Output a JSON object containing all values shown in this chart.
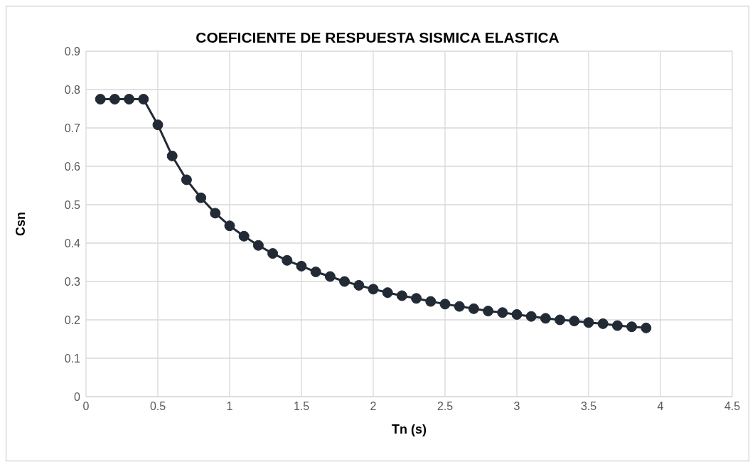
{
  "chart_data": {
    "type": "line",
    "title": "COEFICIENTE DE RESPUESTA SISMICA ELASTICA",
    "xlabel": "Tn (s)",
    "ylabel": "Csn",
    "x": [
      0.1,
      0.2,
      0.3,
      0.4,
      0.5,
      0.6,
      0.7,
      0.8,
      0.9,
      1.0,
      1.1,
      1.2,
      1.3,
      1.4,
      1.5,
      1.6,
      1.7,
      1.8,
      1.9,
      2.0,
      2.1,
      2.2,
      2.3,
      2.4,
      2.5,
      2.6,
      2.7,
      2.8,
      2.9,
      3.0,
      3.1,
      3.2,
      3.3,
      3.4,
      3.5,
      3.6,
      3.7,
      3.8,
      3.9
    ],
    "series": [
      {
        "color": "#222a35",
        "values": [
          0.775,
          0.775,
          0.775,
          0.775,
          0.708,
          0.627,
          0.565,
          0.518,
          0.478,
          0.445,
          0.418,
          0.394,
          0.373,
          0.355,
          0.34,
          0.325,
          0.313,
          0.3,
          0.29,
          0.28,
          0.271,
          0.263,
          0.256,
          0.248,
          0.241,
          0.235,
          0.229,
          0.223,
          0.219,
          0.214,
          0.209,
          0.204,
          0.2,
          0.197,
          0.193,
          0.19,
          0.185,
          0.182,
          0.179
        ]
      }
    ],
    "xlim": [
      0,
      4.5
    ],
    "xticks": [
      0,
      0.5,
      1,
      1.5,
      2,
      2.5,
      3,
      3.5,
      4,
      4.5
    ],
    "ylim": [
      0,
      0.9
    ],
    "yticks": [
      0,
      0.1,
      0.2,
      0.3,
      0.4,
      0.5,
      0.6,
      0.7,
      0.8,
      0.9
    ],
    "grid": true,
    "marker": "circle",
    "line_style": "solid",
    "legend": false
  }
}
